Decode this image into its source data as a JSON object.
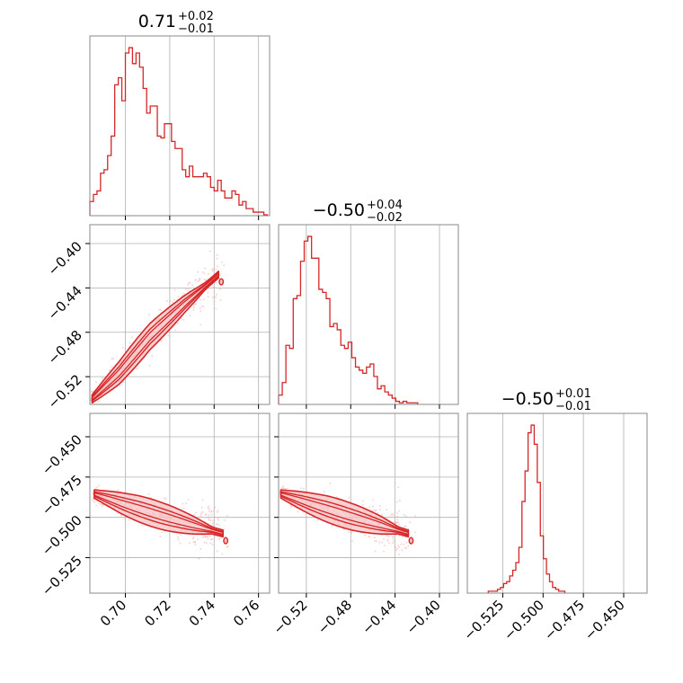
{
  "chart_data": [
    {
      "type": "histogram",
      "panel": "diag-1",
      "title": {
        "value": "0.71",
        "plus": "+0.02",
        "minus": "−0.01"
      },
      "xlim": [
        0.684,
        0.765
      ],
      "xticks": [
        0.7,
        0.72,
        0.74,
        0.76
      ],
      "xtick_labels": [
        "0.70",
        "0.72",
        "0.74",
        "0.76"
      ],
      "bins": {
        "start": 0.684,
        "width": 0.0016,
        "counts": [
          8,
          12,
          14,
          24,
          26,
          34,
          45,
          74,
          78,
          65,
          92,
          95,
          86,
          92,
          84,
          72,
          58,
          62,
          62,
          45,
          44,
          52,
          52,
          42,
          38,
          38,
          26,
          22,
          28,
          22,
          22,
          22,
          24,
          22,
          16,
          14,
          20,
          14,
          10,
          10,
          14,
          12,
          6,
          8,
          4,
          4,
          2,
          2,
          2,
          0.5
        ]
      }
    },
    {
      "type": "histogram",
      "panel": "diag-2",
      "title": {
        "value": "−0.50",
        "plus": "+0.04",
        "minus": "−0.02"
      },
      "xlim": [
        -0.545,
        -0.383
      ],
      "xticks": [
        -0.52,
        -0.48,
        -0.44,
        -0.4
      ],
      "xtick_labels": [
        "−0.52",
        "−0.48",
        "−0.44",
        "−0.40"
      ],
      "bins": {
        "start": -0.545,
        "width": 0.0033,
        "counts": [
          6,
          14,
          38,
          36,
          68,
          70,
          92,
          105,
          108,
          94,
          94,
          74,
          72,
          68,
          50,
          52,
          48,
          38,
          36,
          40,
          30,
          24,
          22,
          20,
          24,
          26,
          18,
          10,
          12,
          8,
          6,
          4,
          2,
          1,
          2,
          1,
          1,
          1
        ]
      }
    },
    {
      "type": "histogram",
      "panel": "diag-3",
      "title": {
        "value": "−0.50",
        "plus": "+0.01",
        "minus": "−0.01"
      },
      "xlim": [
        -0.547,
        -0.4355
      ],
      "xticks": [
        -0.525,
        -0.5,
        -0.475,
        -0.45
      ],
      "xtick_labels": [
        "−0.525",
        "−0.500",
        "−0.475",
        "−0.450"
      ],
      "bins": {
        "start": -0.534,
        "width": 0.0019,
        "counts": [
          1,
          1,
          1,
          2,
          3,
          5,
          6,
          9,
          12,
          16,
          24,
          48,
          64,
          84,
          88,
          78,
          58,
          30,
          18,
          10,
          6,
          3,
          2,
          1,
          1
        ]
      }
    },
    {
      "type": "scatter-contour",
      "panel": "p21",
      "xlim": [
        0.684,
        0.765
      ],
      "ylim": [
        -0.545,
        -0.383
      ],
      "yticks": [
        -0.4,
        -0.44,
        -0.48,
        -0.52
      ],
      "ytick_labels": [
        "−0.40",
        "−0.44",
        "−0.48",
        "−0.52"
      ],
      "ridge": [
        [
          0.685,
          -0.54
        ],
        [
          0.697,
          -0.517
        ],
        [
          0.711,
          -0.484
        ],
        [
          0.727,
          -0.454
        ],
        [
          0.742,
          -0.428
        ]
      ],
      "band_width": 0.012
    },
    {
      "type": "scatter-contour",
      "panel": "p31",
      "xlim": [
        0.684,
        0.765
      ],
      "ylim": [
        -0.547,
        -0.4355
      ],
      "yticks": [
        -0.45,
        -0.475,
        -0.5,
        -0.525
      ],
      "ytick_labels": [
        "−0.450",
        "−0.475",
        "−0.500",
        "−0.525"
      ],
      "ridge": [
        [
          0.686,
          -0.4855
        ],
        [
          0.701,
          -0.4925
        ],
        [
          0.716,
          -0.499
        ],
        [
          0.731,
          -0.505
        ],
        [
          0.744,
          -0.51
        ]
      ],
      "band_width": 0.0085
    },
    {
      "type": "scatter-contour",
      "panel": "p32",
      "xlim": [
        -0.545,
        -0.383
      ],
      "ylim": [
        -0.547,
        -0.4355
      ],
      "ridge": [
        [
          -0.543,
          -0.4855
        ],
        [
          -0.512,
          -0.4925
        ],
        [
          -0.482,
          -0.499
        ],
        [
          -0.452,
          -0.505
        ],
        [
          -0.428,
          -0.51
        ]
      ],
      "band_width": 0.0085
    }
  ],
  "colors": {
    "accent": "#d62728",
    "fill": "#f6c2c4",
    "scatter": "#f2b6b8",
    "grid": "#b0b0b0",
    "frame": "#888888"
  }
}
